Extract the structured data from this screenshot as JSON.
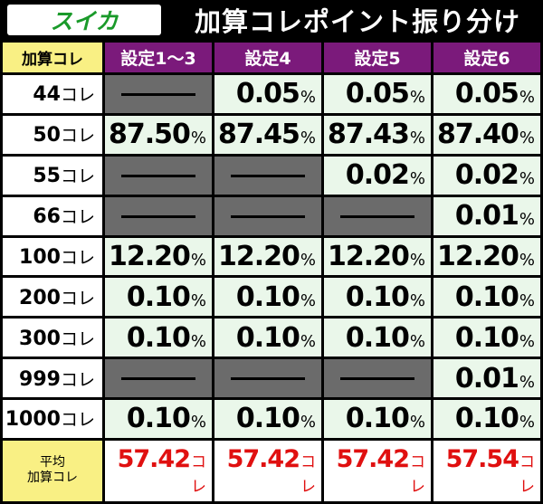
{
  "header": {
    "tag": "スイカ",
    "title": "加算コレポイント振り分け"
  },
  "table": {
    "corner": "加算コレ",
    "columns": [
      "設定1〜3",
      "設定4",
      "設定5",
      "設定6"
    ],
    "pct_unit": "%",
    "row_unit": "コレ",
    "rows": [
      {
        "num": "44",
        "cells": [
          null,
          "0.05",
          "0.05",
          "0.05"
        ]
      },
      {
        "num": "50",
        "cells": [
          "87.50",
          "87.45",
          "87.43",
          "87.40"
        ]
      },
      {
        "num": "55",
        "cells": [
          null,
          null,
          "0.02",
          "0.02"
        ]
      },
      {
        "num": "66",
        "cells": [
          null,
          null,
          null,
          "0.01"
        ]
      },
      {
        "num": "100",
        "cells": [
          "12.20",
          "12.20",
          "12.20",
          "12.20"
        ]
      },
      {
        "num": "200",
        "cells": [
          "0.10",
          "0.10",
          "0.10",
          "0.10"
        ]
      },
      {
        "num": "300",
        "cells": [
          "0.10",
          "0.10",
          "0.10",
          "0.10"
        ]
      },
      {
        "num": "999",
        "cells": [
          null,
          null,
          null,
          "0.01"
        ]
      },
      {
        "num": "1000",
        "cells": [
          "0.10",
          "0.10",
          "0.10",
          "0.10"
        ]
      }
    ],
    "footer": {
      "label_line1": "平均",
      "label_line2": "加算コレ",
      "unit": "コレ",
      "values": [
        "57.42",
        "57.42",
        "57.42",
        "57.54"
      ]
    }
  },
  "colors": {
    "header_purple": "#7b1a7b",
    "corner_yellow": "#f9f084",
    "value_bg": "#eaf7ea",
    "empty_gray": "#6b6b6b",
    "avg_red": "#e01010",
    "tag_green": "#1a9a2a"
  }
}
